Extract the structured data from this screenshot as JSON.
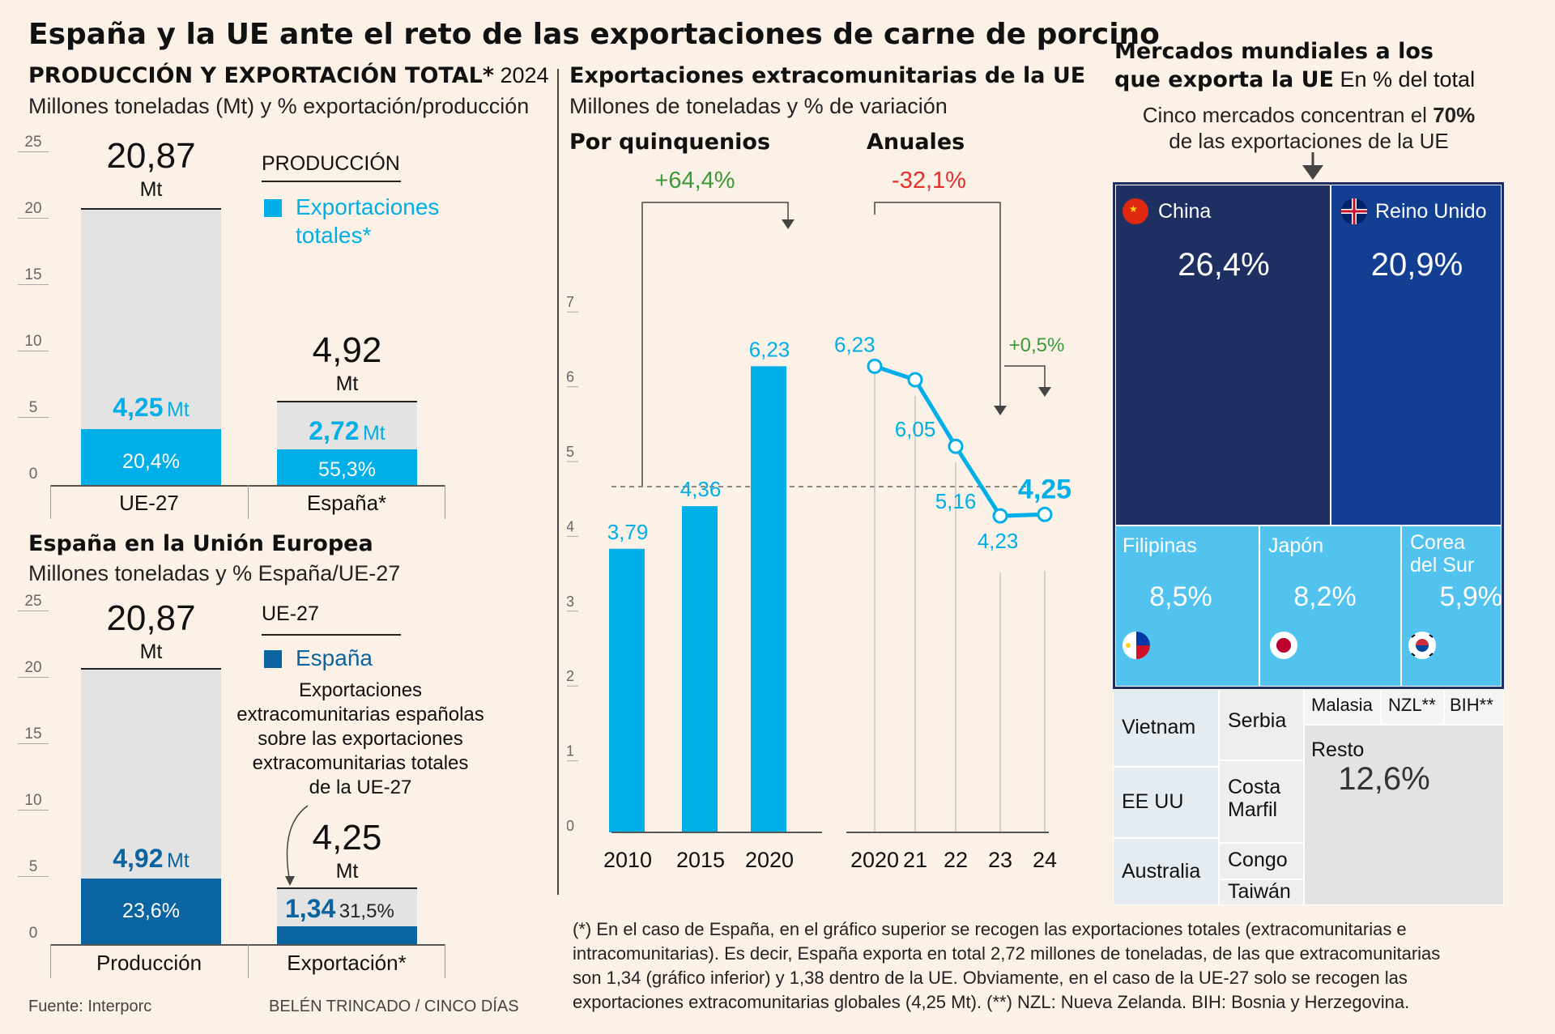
{
  "title": "España y la UE ante el reto de las exportaciones de carne de porcino",
  "colors": {
    "bg": "#fcf1e6",
    "light_blue": "#00aee8",
    "dark_blue": "#0a64a0",
    "grey": "#e3e3e3",
    "red": "#e0312a",
    "green": "#3a9a3a",
    "navy": "#1e2f62",
    "royal": "#123f91",
    "sky": "#52c2ef"
  },
  "top_panel": {
    "heading": "PRODUCCIÓN Y EXPORTACIÓN TOTAL*",
    "heading_year": "2024",
    "subtitle": "Millones toneladas (Mt) y % exportación/producción",
    "legend_prod": "PRODUCCIÓN",
    "legend_exp_1": "Exportaciones",
    "legend_exp_2": "totales*",
    "eu_total": "20,87",
    "eu_unit": "Mt",
    "eu_exp": "4,25",
    "eu_exp_unit": "Mt",
    "eu_pct": "20,4%",
    "es_total": "4,92",
    "es_unit": "Mt",
    "es_exp": "2,72",
    "es_exp_unit": "Mt",
    "es_pct": "55,3%",
    "cat_eu": "UE-27",
    "cat_es": "España*"
  },
  "bottom_panel": {
    "heading": "España en la Unión Europea",
    "subtitle": "Millones toneladas y % España/UE-27",
    "legend_eu": "UE-27",
    "legend_es": "España",
    "note_1": "Exportaciones",
    "note_2": "extracomunitarias españolas",
    "note_3": "sobre las exportaciones",
    "note_4": "extracomunitarias totales",
    "note_5": "de la UE-27",
    "prod_total": "20,87",
    "prod_unit": "Mt",
    "prod_es": "4,92",
    "prod_es_unit": "Mt",
    "prod_pct": "23,6%",
    "exp_total": "4,25",
    "exp_unit": "Mt",
    "exp_es": "1,34",
    "exp_pct": "31,5%",
    "cat_prod": "Producción",
    "cat_exp": "Exportación*"
  },
  "ticks_left": [
    "0",
    "5",
    "10",
    "15",
    "20",
    "25"
  ],
  "middle": {
    "heading": "Exportaciones extracomunitarias de la UE",
    "subtitle": "Millones de toneladas y % de variación",
    "quin_label": "Por quinquenios",
    "annual_label": "Anuales",
    "quin_change": "+64,4%",
    "annual_change": "-32,1%",
    "last_change": "+0,5%",
    "ticks": [
      "0",
      "1",
      "2",
      "3",
      "4",
      "5",
      "6",
      "7"
    ]
  },
  "right": {
    "heading_1": "Mercados mundiales a los",
    "heading_2": "que exporta la UE",
    "heading_2b": "En % del total",
    "sub_1a": "Cinco mercados  concentran el",
    "sub_1b": "70%",
    "sub_2": "de las exportaciones de la UE",
    "china": "China",
    "china_v": "26,4%",
    "uk": "Reino Unido",
    "uk_v": "20,9%",
    "fil": "Filipinas",
    "fil_v": "8,5%",
    "jap": "Japón",
    "jap_v": "8,2%",
    "kor_1": "Corea",
    "kor_2": "del Sur",
    "kor_v": "5,9%",
    "vietnam": "Vietnam",
    "eeuu": "EE UU",
    "australia": "Australia",
    "serbia": "Serbia",
    "costa_1": "Costa",
    "costa_2": "Marfil",
    "congo": "Congo",
    "taiwan": "Taiwán",
    "malasia": "Malasia",
    "nzl": "NZL**",
    "bih": "BIH**",
    "resto": "Resto",
    "resto_v": "12,6%"
  },
  "footnote": [
    "(*) En el caso de España, en el gráfico superior se recogen las exportaciones totales (extracomunitarias e",
    "intracomunitarias). Es decir, España exporta en total 2,72 millones de toneladas, de las que extracomunitarias",
    "son 1,34 (gráfico inferior) y 1,38 dentro de la UE. Obviamente, en el caso de la UE-27 solo se recogen las",
    "exportaciones extracomunitarias globales (4,25 Mt). (**) NZL: Nueva Zelanda. BIH: Bosnia y Herzegovina."
  ],
  "source": "Fuente: Interporc",
  "credit": "BELÉN TRINCADO / CINCO DÍAS",
  "chart_data": [
    {
      "type": "bar",
      "title": "PRODUCCIÓN Y EXPORTACIÓN TOTAL* 2024",
      "categories": [
        "UE-27",
        "España*"
      ],
      "series": [
        {
          "name": "PRODUCCIÓN",
          "values": [
            20.87,
            4.92
          ]
        },
        {
          "name": "Exportaciones totales*",
          "values": [
            4.25,
            2.72
          ]
        }
      ],
      "ylim": [
        0,
        25
      ]
    },
    {
      "type": "bar",
      "title": "España en la Unión Europea",
      "categories": [
        "Producción",
        "Exportación*"
      ],
      "series": [
        {
          "name": "UE-27",
          "values": [
            20.87,
            4.25
          ]
        },
        {
          "name": "España",
          "values": [
            4.92,
            1.34
          ]
        }
      ],
      "ylim": [
        0,
        25
      ]
    },
    {
      "type": "bar",
      "title": "Por quinquenios",
      "categories": [
        "2010",
        "2015",
        "2020"
      ],
      "values": [
        3.79,
        4.36,
        6.23
      ],
      "labels": [
        "3,79",
        "4,36",
        "6,23"
      ],
      "ylim": [
        0,
        7
      ]
    },
    {
      "type": "line",
      "title": "Anuales",
      "x": [
        "2020",
        "21",
        "22",
        "23",
        "24"
      ],
      "values": [
        6.23,
        6.05,
        5.16,
        4.23,
        4.25
      ],
      "labels": [
        "6,23",
        "6,05",
        "5,16",
        "4,23",
        "4,25"
      ],
      "ylim": [
        0,
        7
      ]
    },
    {
      "type": "table",
      "title": "Mercados mundiales a los que exporta la UE",
      "categories": [
        "China",
        "Reino Unido",
        "Filipinas",
        "Japón",
        "Corea del Sur",
        "Resto"
      ],
      "values": [
        26.4,
        20.9,
        8.5,
        8.2,
        5.9,
        12.6
      ]
    }
  ]
}
